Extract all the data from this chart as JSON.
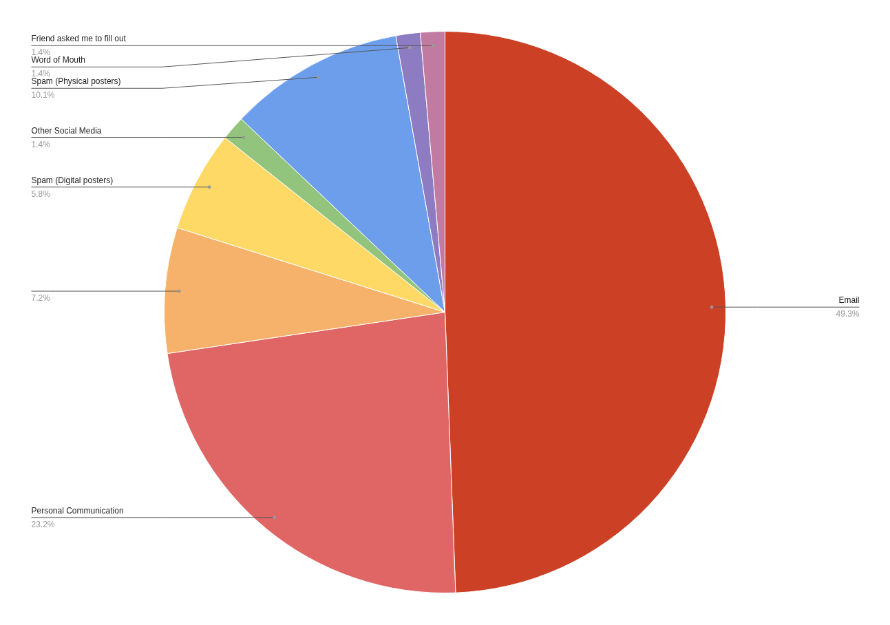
{
  "chart_data": {
    "type": "pie",
    "categories": [
      "Email",
      "Personal Communication",
      null,
      "Spam (Digital posters)",
      "Other Social Media",
      "Spam (Physical posters)",
      "Word of Mouth",
      "Friend asked me to fill out"
    ],
    "values": [
      49.3,
      23.2,
      7.2,
      5.8,
      1.4,
      10.1,
      1.4,
      1.4
    ],
    "colors": [
      "#cc4125",
      "#e06666",
      "#f6b26b",
      "#ffd966",
      "#93c47d",
      "#6d9eeb",
      "#8e7cc3",
      "#c27ba0"
    ],
    "value_labels": [
      "49.3%",
      "23.2%",
      "7.2%",
      "5.8%",
      "1.4%",
      "10.1%",
      "1.4%",
      "1.4%"
    ]
  }
}
